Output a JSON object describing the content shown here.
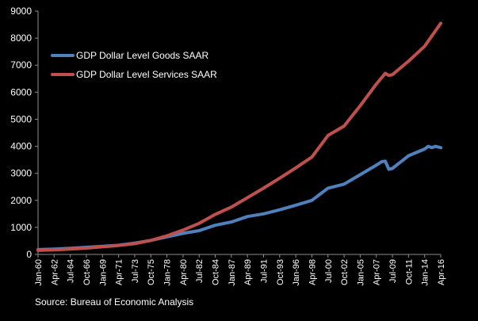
{
  "chart_data": {
    "type": "line",
    "title": "",
    "xlabel": "",
    "ylabel": "",
    "ylim": [
      0,
      9000
    ],
    "y_ticks": [
      0,
      1000,
      2000,
      3000,
      4000,
      5000,
      6000,
      7000,
      8000,
      9000
    ],
    "x_ticks": [
      "Jan-60",
      "Apr-62",
      "Jul-64",
      "Oct-66",
      "Jan-69",
      "Apr-71",
      "Jul-73",
      "Oct-75",
      "Jan-78",
      "Apr-80",
      "Jul-82",
      "Oct-84",
      "Jan-87",
      "Apr-89",
      "Jul-91",
      "Oct-93",
      "Jan-96",
      "Apr-98",
      "Jul-00",
      "Oct-02",
      "Jan-05",
      "Apr-07",
      "Jul-09",
      "Oct-11",
      "Jan-14",
      "Apr-16"
    ],
    "grid": false,
    "legend": "top-left",
    "series": [
      {
        "name": "GDP Dollar Level Goods SAAR",
        "color": "#4F81BD",
        "points": [
          [
            "Jan-60",
            180
          ],
          [
            "Apr-62",
            195
          ],
          [
            "Jul-64",
            225
          ],
          [
            "Oct-66",
            265
          ],
          [
            "Jan-69",
            300
          ],
          [
            "Apr-71",
            340
          ],
          [
            "Jul-73",
            420
          ],
          [
            "Oct-75",
            520
          ],
          [
            "Jan-78",
            650
          ],
          [
            "Apr-80",
            780
          ],
          [
            "Jul-82",
            880
          ],
          [
            "Oct-84",
            1080
          ],
          [
            "Jan-87",
            1200
          ],
          [
            "Apr-89",
            1400
          ],
          [
            "Jul-91",
            1500
          ],
          [
            "Oct-93",
            1650
          ],
          [
            "Jan-96",
            1820
          ],
          [
            "Apr-98",
            2000
          ],
          [
            "Jul-00",
            2450
          ],
          [
            "Oct-02",
            2600
          ],
          [
            "Jan-05",
            2950
          ],
          [
            "Apr-07",
            3300
          ],
          [
            "Jan-08",
            3430
          ],
          [
            "Jul-08",
            3450
          ],
          [
            "Jan-09",
            3150
          ],
          [
            "Jul-09",
            3180
          ],
          [
            "Oct-11",
            3650
          ],
          [
            "Jan-14",
            3900
          ],
          [
            "Jul-14",
            4000
          ],
          [
            "Jan-15",
            3950
          ],
          [
            "Jul-15",
            4000
          ],
          [
            "Apr-16",
            3950
          ]
        ]
      },
      {
        "name": "GDP Dollar Level Services SAAR",
        "color": "#C0504D",
        "points": [
          [
            "Jan-60",
            150
          ],
          [
            "Apr-62",
            170
          ],
          [
            "Jul-64",
            200
          ],
          [
            "Oct-66",
            235
          ],
          [
            "Jan-69",
            280
          ],
          [
            "Apr-71",
            330
          ],
          [
            "Jul-73",
            400
          ],
          [
            "Oct-75",
            520
          ],
          [
            "Jan-78",
            690
          ],
          [
            "Apr-80",
            900
          ],
          [
            "Jul-82",
            1150
          ],
          [
            "Oct-84",
            1480
          ],
          [
            "Jan-87",
            1750
          ],
          [
            "Apr-89",
            2100
          ],
          [
            "Jul-91",
            2450
          ],
          [
            "Oct-93",
            2820
          ],
          [
            "Jan-96",
            3200
          ],
          [
            "Apr-98",
            3600
          ],
          [
            "Jul-00",
            4400
          ],
          [
            "Oct-02",
            4750
          ],
          [
            "Jan-05",
            5500
          ],
          [
            "Apr-07",
            6300
          ],
          [
            "Jul-08",
            6700
          ],
          [
            "Jan-09",
            6620
          ],
          [
            "Jul-09",
            6650
          ],
          [
            "Oct-11",
            7150
          ],
          [
            "Jan-14",
            7700
          ],
          [
            "Apr-16",
            8550
          ]
        ]
      }
    ]
  },
  "source_text": "Source: Bureau of Economic Analysis"
}
